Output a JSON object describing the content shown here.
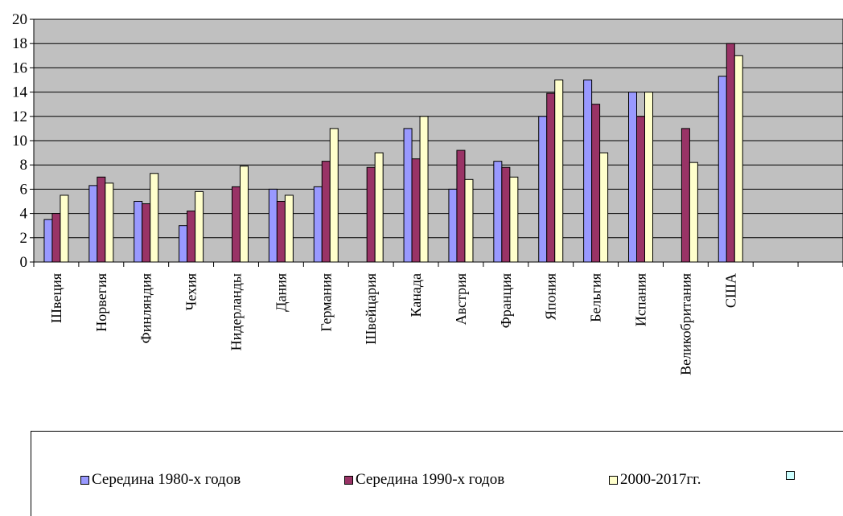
{
  "chart_data": {
    "type": "bar",
    "categories": [
      "Швеция",
      "Норвегия",
      "Финляндия",
      "Чехия",
      "Нидерланды",
      "Дания",
      "Германия",
      "Швейцария",
      "Канада",
      "Австрия",
      "Франция",
      "Япония",
      "Бельгия",
      "Испания",
      "Великобритания",
      "США"
    ],
    "series": [
      {
        "name": "Середина 1980-х годов",
        "color": "#9999ff",
        "values": [
          3.5,
          6.3,
          5,
          3,
          null,
          6,
          6.2,
          null,
          11,
          6,
          8.3,
          12,
          15,
          14,
          null,
          15.3
        ]
      },
      {
        "name": "Середина 1990-х годов",
        "color": "#993366",
        "values": [
          4,
          7,
          4.8,
          4.2,
          6.2,
          5,
          8.3,
          7.8,
          8.5,
          9.2,
          7.8,
          13.9,
          13,
          12,
          11,
          18
        ]
      },
      {
        "name": "2000-2017гг.",
        "color": "#ffffcc",
        "values": [
          5.5,
          6.5,
          7.3,
          5.8,
          7.9,
          5.5,
          11,
          9,
          12,
          6.8,
          7,
          15,
          9,
          14,
          8.2,
          17
        ]
      }
    ],
    "legend_extra": {
      "name": "",
      "color": "#ccffff"
    },
    "yticks": [
      0,
      2,
      4,
      6,
      8,
      10,
      12,
      14,
      16,
      18,
      20
    ],
    "ylim": [
      0,
      20
    ],
    "grid": true,
    "plot_background": "#c0c0c0",
    "legend_position": "bottom",
    "title": "",
    "xlabel": "",
    "ylabel": ""
  }
}
